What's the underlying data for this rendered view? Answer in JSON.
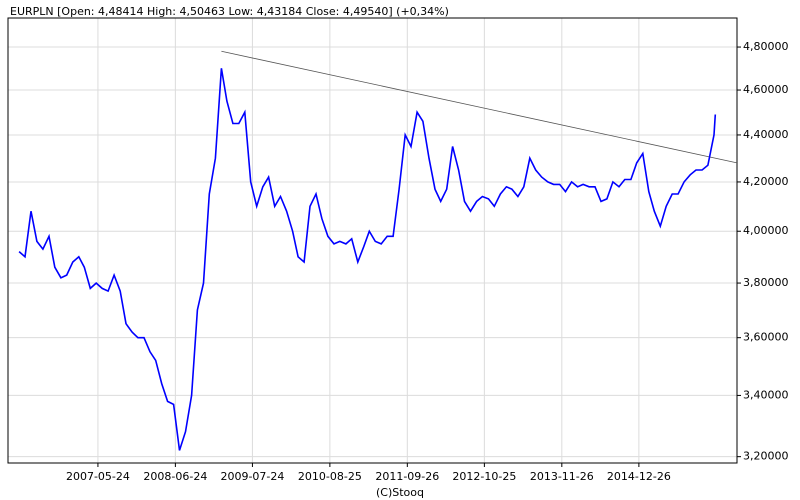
{
  "chart_data": {
    "type": "line",
    "title": "EURPLN [Open: 4,48414  High: 4,50463  Low: 4,43184  Close: 4,49540]  (+0,34%)",
    "footer": "(C)Stooq",
    "color": "#0000ff",
    "yscale": "log",
    "grid": true,
    "xlim": [
      "2006-02-17",
      "2016-05-12"
    ],
    "xticks": [
      "2007-05-24",
      "2008-06-24",
      "2009-07-24",
      "2010-08-25",
      "2011-09-26",
      "2012-10-25",
      "2013-11-26",
      "2014-12-26"
    ],
    "ylim": [
      3.18,
      4.94
    ],
    "yticks": [
      {
        "value": 3.2,
        "label": "3,20000"
      },
      {
        "value": 3.4,
        "label": "3,40000"
      },
      {
        "value": 3.6,
        "label": "3,60000"
      },
      {
        "value": 3.8,
        "label": "3,80000"
      },
      {
        "value": 4.0,
        "label": "4,00000"
      },
      {
        "value": 4.2,
        "label": "4,20000"
      },
      {
        "value": 4.4,
        "label": "4,40000"
      },
      {
        "value": 4.6,
        "label": "4,60000"
      },
      {
        "value": 4.8,
        "label": "4,80000"
      }
    ],
    "x": [
      "2006-04-15",
      "2006-05-15",
      "2006-06-15",
      "2006-07-15",
      "2006-08-15",
      "2006-09-15",
      "2006-10-15",
      "2006-11-15",
      "2006-12-15",
      "2007-01-15",
      "2007-02-15",
      "2007-03-15",
      "2007-04-15",
      "2007-05-15",
      "2007-06-15",
      "2007-07-15",
      "2007-08-15",
      "2007-09-15",
      "2007-10-15",
      "2007-11-15",
      "2007-12-15",
      "2008-01-15",
      "2008-02-15",
      "2008-03-15",
      "2008-04-15",
      "2008-05-15",
      "2008-06-15",
      "2008-07-15",
      "2008-08-15",
      "2008-09-15",
      "2008-10-15",
      "2008-11-15",
      "2008-12-15",
      "2009-01-15",
      "2009-02-15",
      "2009-03-15",
      "2009-04-15",
      "2009-05-15",
      "2009-06-15",
      "2009-07-15",
      "2009-08-15",
      "2009-09-15",
      "2009-10-15",
      "2009-11-15",
      "2009-12-15",
      "2010-01-15",
      "2010-02-15",
      "2010-03-15",
      "2010-04-15",
      "2010-05-15",
      "2010-06-15",
      "2010-07-15",
      "2010-08-15",
      "2010-09-15",
      "2010-10-15",
      "2010-11-15",
      "2010-12-15",
      "2011-01-15",
      "2011-02-15",
      "2011-03-15",
      "2011-04-15",
      "2011-05-15",
      "2011-06-15",
      "2011-07-15",
      "2011-08-15",
      "2011-09-15",
      "2011-10-15",
      "2011-11-15",
      "2011-12-15",
      "2012-01-15",
      "2012-02-15",
      "2012-03-15",
      "2012-04-15",
      "2012-05-15",
      "2012-06-15",
      "2012-07-15",
      "2012-08-15",
      "2012-09-15",
      "2012-10-15",
      "2012-11-15",
      "2012-12-15",
      "2013-01-15",
      "2013-02-15",
      "2013-03-15",
      "2013-04-15",
      "2013-05-15",
      "2013-06-15",
      "2013-07-15",
      "2013-08-15",
      "2013-09-15",
      "2013-10-15",
      "2013-11-15",
      "2013-12-15",
      "2014-01-15",
      "2014-02-15",
      "2014-03-15",
      "2014-04-15",
      "2014-05-15",
      "2014-06-15",
      "2014-07-15",
      "2014-08-15",
      "2014-09-15",
      "2014-10-15",
      "2014-11-15",
      "2014-12-15",
      "2015-01-15",
      "2015-02-15",
      "2015-03-15",
      "2015-04-15",
      "2015-05-15",
      "2015-06-15",
      "2015-07-15",
      "2015-08-15",
      "2015-09-15",
      "2015-10-15",
      "2015-11-15",
      "2015-12-15",
      "2016-01-15",
      "2016-01-22"
    ],
    "values": [
      3.92,
      3.9,
      4.08,
      3.96,
      3.93,
      3.98,
      3.86,
      3.82,
      3.83,
      3.88,
      3.9,
      3.86,
      3.78,
      3.8,
      3.78,
      3.77,
      3.83,
      3.77,
      3.65,
      3.62,
      3.6,
      3.6,
      3.55,
      3.52,
      3.44,
      3.38,
      3.37,
      3.22,
      3.28,
      3.4,
      3.7,
      3.8,
      4.15,
      4.3,
      4.7,
      4.55,
      4.45,
      4.45,
      4.5,
      4.2,
      4.1,
      4.18,
      4.22,
      4.1,
      4.14,
      4.08,
      4.0,
      3.9,
      3.88,
      4.1,
      4.15,
      4.05,
      3.98,
      3.95,
      3.96,
      3.95,
      3.97,
      3.88,
      3.94,
      4.0,
      3.96,
      3.95,
      3.98,
      3.98,
      4.17,
      4.4,
      4.35,
      4.5,
      4.46,
      4.3,
      4.17,
      4.12,
      4.17,
      4.35,
      4.25,
      4.12,
      4.08,
      4.12,
      4.14,
      4.13,
      4.1,
      4.15,
      4.18,
      4.17,
      4.14,
      4.18,
      4.3,
      4.25,
      4.22,
      4.2,
      4.19,
      4.19,
      4.16,
      4.2,
      4.18,
      4.19,
      4.18,
      4.18,
      4.12,
      4.13,
      4.2,
      4.18,
      4.21,
      4.21,
      4.28,
      4.32,
      4.16,
      4.08,
      4.02,
      4.1,
      4.15,
      4.15,
      4.2,
      4.23,
      4.25,
      4.25,
      4.27,
      4.4,
      4.49
    ],
    "trendline": {
      "x": [
        "2009-02-15",
        "2016-05-12"
      ],
      "values": [
        4.78,
        4.28
      ]
    }
  }
}
